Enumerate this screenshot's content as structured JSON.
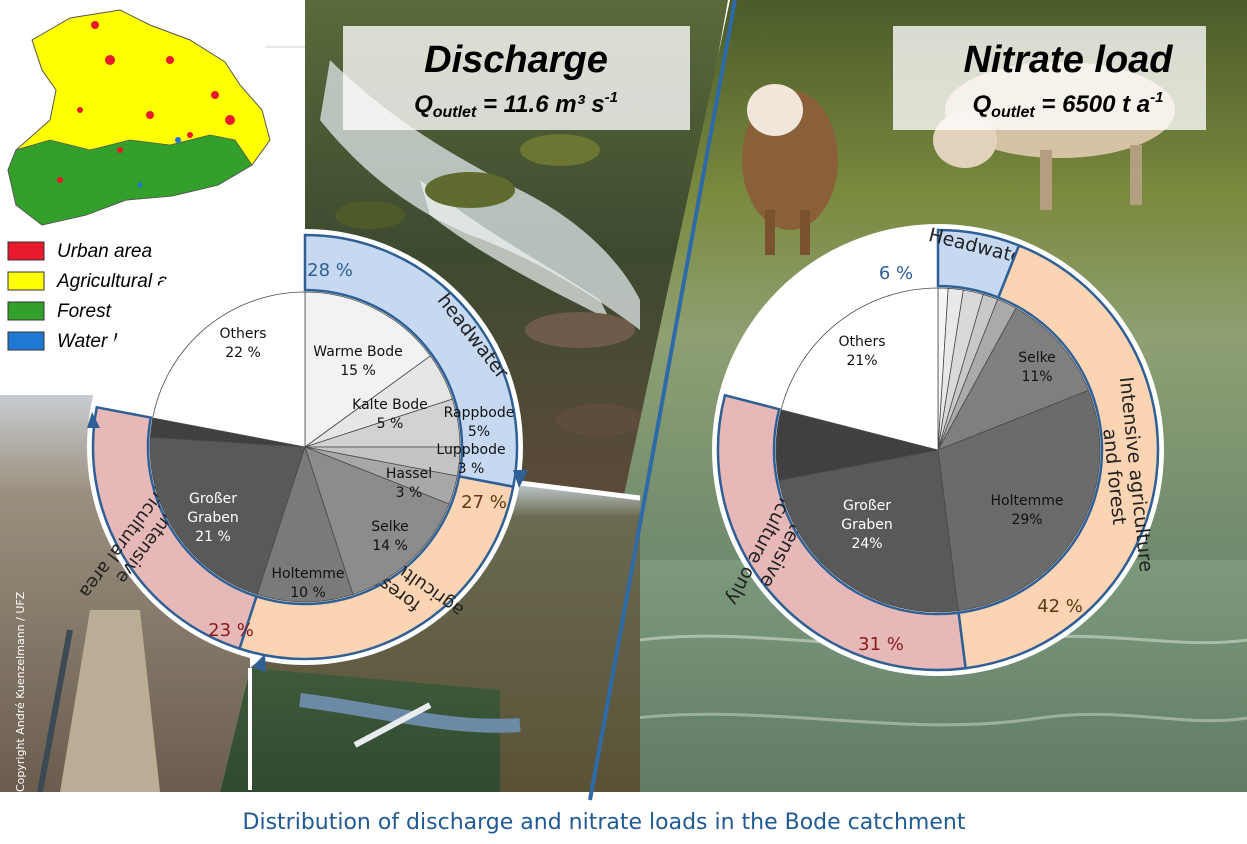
{
  "caption": "Distribution of discharge and nitrate loads in the Bode catchment",
  "copyright": "Copyright André Kuenzelmann / UFZ",
  "legend": {
    "items": [
      {
        "label": "Urban area",
        "color": "#e8192c"
      },
      {
        "label": "Agricultural area",
        "color": "#ffff00"
      },
      {
        "label": "Forest",
        "color": "#33a02c"
      },
      {
        "label": "Water bodies",
        "color": "#1f78d4"
      }
    ]
  },
  "panels": {
    "discharge": {
      "title": "Discharge",
      "sub_main": "Q",
      "sub_index": "outlet",
      "sub_value": " = 11.6 m³ s",
      "sub_exp": "-1"
    },
    "nitrate": {
      "title": "Nitrate load",
      "sub_main": "Q",
      "sub_index": "outlet",
      "sub_value": " = 6500 t a",
      "sub_exp": "-1"
    }
  },
  "chart_data": [
    {
      "type": "pie",
      "slices": [
        {
          "label": "Warme Bode",
          "pct": "15 %",
          "value": 15,
          "color": "#f2f2f2"
        },
        {
          "label": "Kalte Bode",
          "pct": "5 %",
          "value": 5,
          "color": "#e6e6e6"
        },
        {
          "label": "Rappbode",
          "pct": "5%",
          "value": 5,
          "color": "#d2d2d2"
        },
        {
          "label": "Luppbode",
          "pct": "3 %",
          "value": 3,
          "color": "#c4c4c4"
        },
        {
          "label": "Hassel",
          "pct": "3 %",
          "value": 3,
          "color": "#a8a8a8"
        },
        {
          "label": "Selke",
          "pct": "14 %",
          "value": 14,
          "color": "#8c8c8c"
        },
        {
          "label": "Holtemme",
          "pct": "10 %",
          "value": 10,
          "color": "#7a7a7a"
        },
        {
          "label": "Großer Graben",
          "pct": "21 %",
          "value": 21,
          "color": "#595959"
        },
        {
          "label": "",
          "pct": "",
          "value": 2,
          "color": "#404040"
        },
        {
          "label": "Others",
          "pct": "22 %",
          "value": 22,
          "color": "#ffffff"
        }
      ],
      "groups": [
        {
          "label": "headwater",
          "pct": "28 %",
          "value": 28,
          "color": "#c6d9f1"
        },
        {
          "label": "forest & agricultural area",
          "pct": "27 %",
          "value": 27,
          "color": "#fbd4b4"
        },
        {
          "label": "intensive agricultural area",
          "pct": "23 %",
          "value": 23,
          "color": "#e6b9b8"
        }
      ]
    },
    {
      "type": "pie",
      "slices": [
        {
          "label": "",
          "pct": "",
          "value": 1,
          "color": "#f5f5f5"
        },
        {
          "label": "",
          "pct": "",
          "value": 1.5,
          "color": "#e8e8e8"
        },
        {
          "label": "",
          "pct": "",
          "value": 2,
          "color": "#d9d9d9"
        },
        {
          "label": "",
          "pct": "",
          "value": 1.5,
          "color": "#c8c8c8"
        },
        {
          "label": "",
          "pct": "",
          "value": 2,
          "color": "#aaaaaa"
        },
        {
          "label": "Selke",
          "pct": "11%",
          "value": 11,
          "color": "#7f7f7f"
        },
        {
          "label": "Holtemme",
          "pct": "29%",
          "value": 29,
          "color": "#6b6b6b"
        },
        {
          "label": "Großer Graben",
          "pct": "24%",
          "value": 24,
          "color": "#595959"
        },
        {
          "label": "",
          "pct": "",
          "value": 7,
          "color": "#404040"
        },
        {
          "label": "Others",
          "pct": "21%",
          "value": 21,
          "color": "#ffffff"
        }
      ],
      "groups": [
        {
          "label": "Headwater",
          "pct": "6 %",
          "value": 6,
          "color": "#c6d9f1"
        },
        {
          "label": "Intensive agriculture and forest",
          "pct": "42 %",
          "value": 42,
          "color": "#fbd4b4"
        },
        {
          "label": "Intensive agriculture only",
          "pct": "31 %",
          "value": 31,
          "color": "#e6b9b8"
        }
      ]
    }
  ]
}
